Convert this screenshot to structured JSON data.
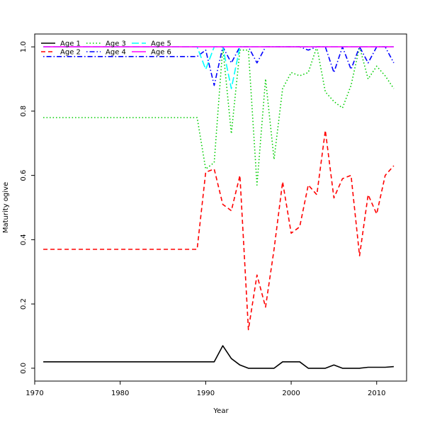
{
  "chart_data": {
    "type": "line",
    "title": "",
    "xlabel": "Year",
    "ylabel": "Maturity ogive",
    "xlim": [
      1970,
      2013.5
    ],
    "ylim": [
      -0.04,
      1.04
    ],
    "x_ticks": [
      1970,
      1980,
      1990,
      2000,
      2010
    ],
    "y_ticks": [
      0.0,
      0.2,
      0.4,
      0.6,
      0.8,
      1.0
    ],
    "y_tick_labels": [
      "0.0",
      "0.2",
      "0.4",
      "0.6",
      "0.8",
      "1.0"
    ],
    "grid": false,
    "legend_position": "top-left",
    "x": [
      1971,
      1972,
      1973,
      1974,
      1975,
      1976,
      1977,
      1978,
      1979,
      1980,
      1981,
      1982,
      1983,
      1984,
      1985,
      1986,
      1987,
      1988,
      1989,
      1990,
      1991,
      1992,
      1993,
      1994,
      1995,
      1996,
      1997,
      1998,
      1999,
      2000,
      2001,
      2002,
      2003,
      2004,
      2005,
      2006,
      2007,
      2008,
      2009,
      2010,
      2011,
      2012
    ],
    "series": [
      {
        "name": "Age 1",
        "color": "#000000",
        "dash": "solid",
        "values": [
          0.02,
          0.02,
          0.02,
          0.02,
          0.02,
          0.02,
          0.02,
          0.02,
          0.02,
          0.02,
          0.02,
          0.02,
          0.02,
          0.02,
          0.02,
          0.02,
          0.02,
          0.02,
          0.02,
          0.02,
          0.02,
          0.07,
          0.03,
          0.01,
          0.0,
          0.0,
          0.0,
          0.0,
          0.02,
          0.02,
          0.02,
          0.0,
          0.0,
          0.0,
          0.01,
          0.0,
          0.0,
          0.0,
          0.003,
          0.003,
          0.003,
          0.005
        ]
      },
      {
        "name": "Age 2",
        "color": "#ff0000",
        "dash": "dashed",
        "values": [
          0.37,
          0.37,
          0.37,
          0.37,
          0.37,
          0.37,
          0.37,
          0.37,
          0.37,
          0.37,
          0.37,
          0.37,
          0.37,
          0.37,
          0.37,
          0.37,
          0.37,
          0.37,
          0.37,
          0.61,
          0.62,
          0.51,
          0.49,
          0.6,
          0.12,
          0.29,
          0.19,
          0.37,
          0.58,
          0.42,
          0.44,
          0.57,
          0.54,
          0.74,
          0.53,
          0.59,
          0.6,
          0.35,
          0.54,
          0.48,
          0.6,
          0.63
        ]
      },
      {
        "name": "Age 3",
        "color": "#00cd00",
        "dash": "dotted",
        "values": [
          0.78,
          0.78,
          0.78,
          0.78,
          0.78,
          0.78,
          0.78,
          0.78,
          0.78,
          0.78,
          0.78,
          0.78,
          0.78,
          0.78,
          0.78,
          0.78,
          0.78,
          0.78,
          0.78,
          0.62,
          0.64,
          1.0,
          0.73,
          0.99,
          0.99,
          0.57,
          0.9,
          0.65,
          0.87,
          0.92,
          0.91,
          0.92,
          1.0,
          0.86,
          0.83,
          0.81,
          0.88,
          1.0,
          0.9,
          0.94,
          0.91,
          0.87
        ]
      },
      {
        "name": "Age 4",
        "color": "#0000ff",
        "dash": "dotdash",
        "values": [
          0.97,
          0.97,
          0.97,
          0.97,
          0.97,
          0.97,
          0.97,
          0.97,
          0.97,
          0.97,
          0.97,
          0.97,
          0.97,
          0.97,
          0.97,
          0.97,
          0.97,
          0.97,
          0.97,
          0.99,
          0.88,
          1.0,
          0.95,
          1.0,
          1.0,
          0.95,
          1.0,
          1.0,
          1.0,
          1.0,
          1.0,
          0.99,
          1.0,
          1.0,
          0.92,
          1.0,
          0.93,
          1.0,
          0.95,
          1.0,
          1.0,
          0.95
        ]
      },
      {
        "name": "Age 5",
        "color": "#00ffff",
        "dash": "longdash",
        "values": [
          1.0,
          1.0,
          1.0,
          1.0,
          1.0,
          1.0,
          1.0,
          1.0,
          1.0,
          1.0,
          1.0,
          1.0,
          1.0,
          1.0,
          1.0,
          1.0,
          1.0,
          1.0,
          1.0,
          0.93,
          1.0,
          1.0,
          0.87,
          1.0,
          1.0,
          1.0,
          1.0,
          1.0,
          1.0,
          1.0,
          1.0,
          1.0,
          1.0,
          1.0,
          1.0,
          1.0,
          1.0,
          1.0,
          1.0,
          1.0,
          1.0,
          1.0
        ]
      },
      {
        "name": "Age 6",
        "color": "#ff00ff",
        "dash": "solid",
        "values": [
          1.0,
          1.0,
          1.0,
          1.0,
          1.0,
          1.0,
          1.0,
          1.0,
          1.0,
          1.0,
          1.0,
          1.0,
          1.0,
          1.0,
          1.0,
          1.0,
          1.0,
          1.0,
          1.0,
          1.0,
          1.0,
          1.0,
          1.0,
          1.0,
          1.0,
          1.0,
          1.0,
          1.0,
          1.0,
          1.0,
          1.0,
          1.0,
          1.0,
          1.0,
          1.0,
          1.0,
          1.0,
          1.0,
          1.0,
          1.0,
          1.0,
          1.0
        ]
      }
    ]
  }
}
